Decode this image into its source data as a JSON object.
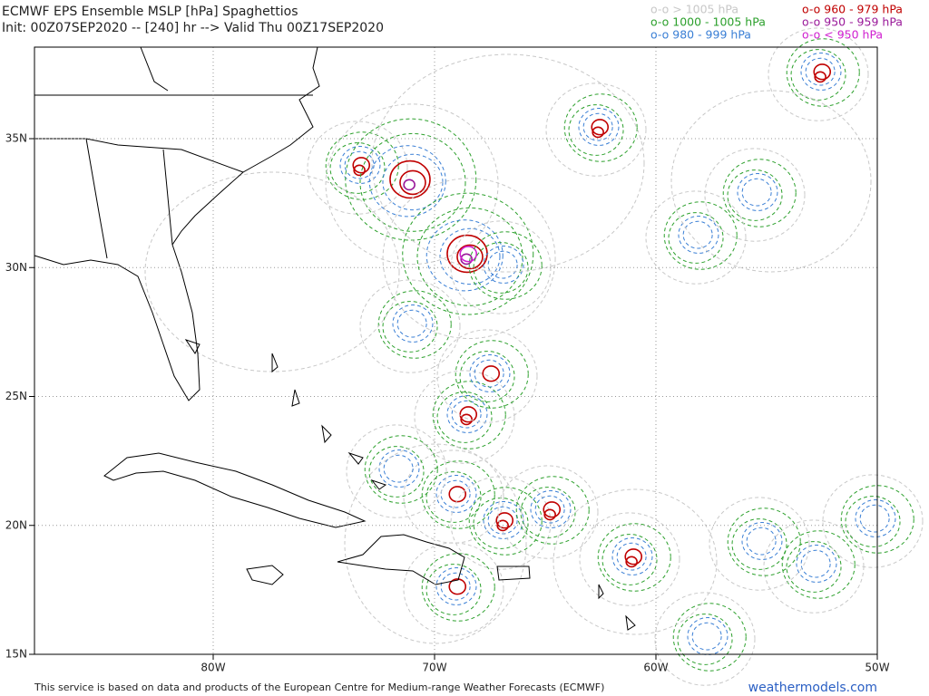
{
  "header": {
    "title": "ECMWF EPS Ensemble MSLP [hPa] Spaghettios",
    "init": "Init: 00Z07SEP2020 -- [240] hr --> Valid Thu 00Z17SEP2020"
  },
  "legend": [
    {
      "label": "o-o > 1005 hPa",
      "color": "#c8c8c8"
    },
    {
      "label": "o-o 1000 - 1005 hPa",
      "color": "#2ca02c"
    },
    {
      "label": "o-o 980 - 999 hPa",
      "color": "#3a7fd5"
    },
    {
      "label": "o-o 960 - 979 hPa",
      "color": "#c00000"
    },
    {
      "label": "o-o 950 - 959 hPa",
      "color": "#9a1a9a"
    },
    {
      "label": "o-o < 950 hPa",
      "color": "#d020d0"
    }
  ],
  "map": {
    "lat_labels": [
      "35N",
      "30N",
      "25N",
      "20N",
      "15N"
    ],
    "lon_labels": [
      "80W",
      "70W",
      "60W",
      "50W"
    ]
  },
  "footer": {
    "credit": "This service is based on data and products of the European Centre for Medium-range Weather Forecasts (ECMWF)",
    "link": "weathermodels.com"
  }
}
